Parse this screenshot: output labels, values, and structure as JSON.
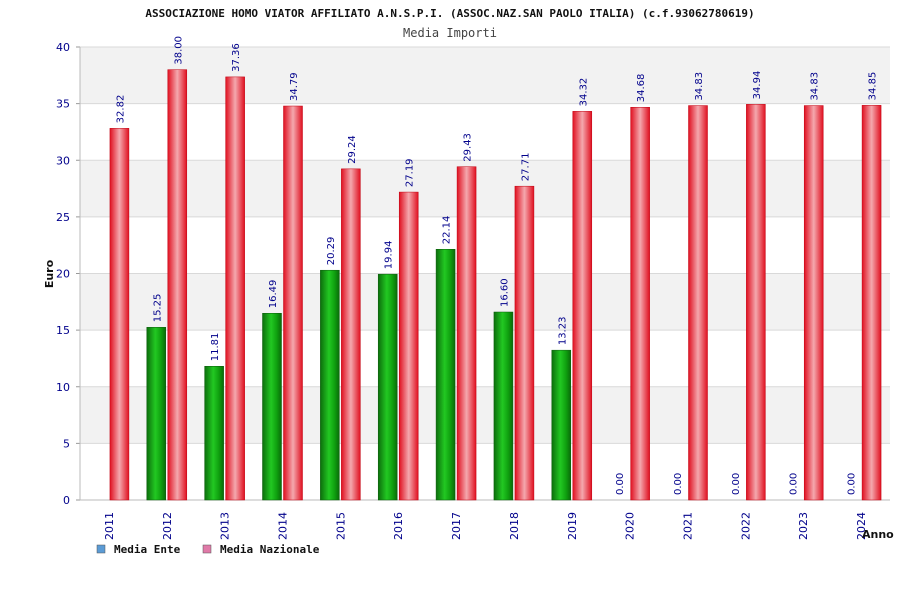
{
  "chart_data": {
    "type": "bar",
    "title": "ASSOCIAZIONE HOMO VIATOR AFFILIATO A.N.S.P.I. (ASSOC.NAZ.SAN PAOLO ITALIA) (c.f.93062780619)",
    "subtitle": "Media Importi",
    "xlabel": "Anno",
    "ylabel": "Euro",
    "ylim": [
      0,
      40
    ],
    "yticks": [
      0,
      5,
      10,
      15,
      20,
      25,
      30,
      35,
      40
    ],
    "grid": true,
    "legend_position": "bottom-left",
    "categories": [
      "2011",
      "2012",
      "2013",
      "2014",
      "2015",
      "2016",
      "2017",
      "2018",
      "2019",
      "2020",
      "2021",
      "2022",
      "2023",
      "2024"
    ],
    "series": [
      {
        "name": "Media Ente",
        "legend_color": "#5b9bd5",
        "bar_color": "#18b018",
        "values": [
          null,
          15.25,
          11.81,
          16.49,
          20.29,
          19.94,
          22.14,
          16.6,
          13.23,
          0.0,
          0.0,
          0.0,
          0.0,
          0.0
        ],
        "labels": [
          "",
          "15.25",
          "11.81",
          "16.49",
          "20.29",
          "19.94",
          "22.14",
          "16.60",
          "13.23",
          "0.00",
          "0.00",
          "0.00",
          "0.00",
          "0.00"
        ]
      },
      {
        "name": "Media Nazionale",
        "legend_color": "#e07aa8",
        "bar_color": "#e8202a",
        "values": [
          32.82,
          38.0,
          37.36,
          34.79,
          29.24,
          27.19,
          29.43,
          27.71,
          34.32,
          34.68,
          34.83,
          34.94,
          34.83,
          34.85
        ],
        "labels": [
          "32.82",
          "38.00",
          "37.36",
          "34.79",
          "29.24",
          "27.19",
          "29.43",
          "27.71",
          "34.32",
          "34.68",
          "34.83",
          "34.94",
          "34.83",
          "34.85"
        ]
      }
    ]
  }
}
